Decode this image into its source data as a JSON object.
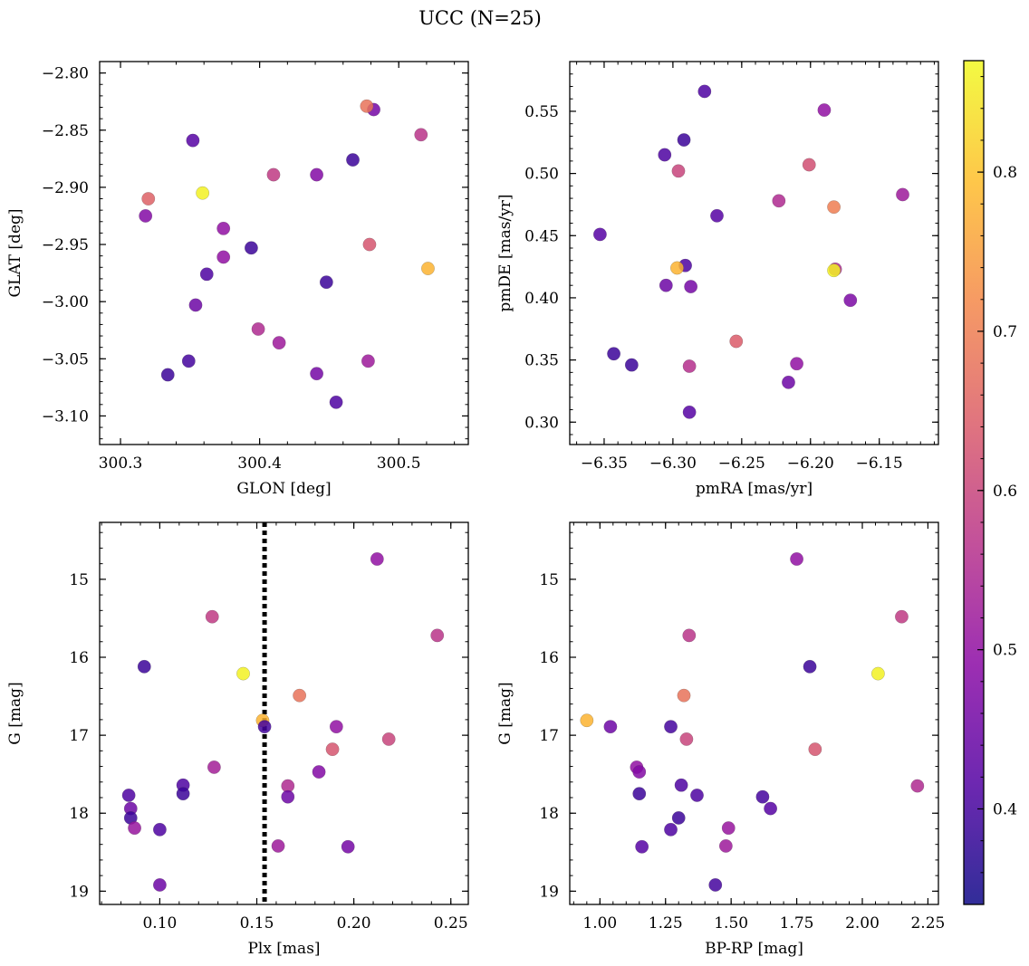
{
  "figure": {
    "title": "UCC (N=25)"
  },
  "colorbar": {
    "range": [
      0.34,
      0.87
    ],
    "ticks": [
      0.4,
      0.5,
      0.6,
      0.7,
      0.8
    ],
    "tick_labels": [
      "0.4",
      "0.5",
      "0.6",
      "0.7",
      "0.8"
    ],
    "colormap_stops": [
      "#0d0887",
      "#5302a3",
      "#8b0aa5",
      "#b83289",
      "#db5c68",
      "#f48849",
      "#febd2a",
      "#f0f921"
    ]
  },
  "chart_data": [
    {
      "type": "scatter",
      "xlabel": "GLON [deg]",
      "ylabel": "GLAT [deg]",
      "xlim": [
        300.285,
        300.55
      ],
      "ylim": [
        -3.125,
        -2.79
      ],
      "xticks": [
        300.3,
        300.4,
        300.5
      ],
      "xtick_labels": [
        "300.3",
        "300.4",
        "300.5"
      ],
      "yticks": [
        -2.8,
        -2.85,
        -2.9,
        -2.95,
        -3.0,
        -3.05,
        -3.1
      ],
      "ytick_labels": [
        "−2.80",
        "−2.85",
        "−2.90",
        "−2.95",
        "−3.00",
        "−3.05",
        "−3.10"
      ],
      "points": [
        {
          "x": 300.516,
          "y": -2.854,
          "c": 0.57
        },
        {
          "x": 300.482,
          "y": -2.832,
          "c": 0.46
        },
        {
          "x": 300.477,
          "y": -2.829,
          "c": 0.68
        },
        {
          "x": 300.467,
          "y": -2.876,
          "c": 0.39
        },
        {
          "x": 300.352,
          "y": -2.859,
          "c": 0.42
        },
        {
          "x": 300.41,
          "y": -2.889,
          "c": 0.58
        },
        {
          "x": 300.441,
          "y": -2.889,
          "c": 0.48
        },
        {
          "x": 300.32,
          "y": -2.91,
          "c": 0.65
        },
        {
          "x": 300.318,
          "y": -2.925,
          "c": 0.48
        },
        {
          "x": 300.359,
          "y": -2.905,
          "c": 0.86
        },
        {
          "x": 300.374,
          "y": -2.936,
          "c": 0.5
        },
        {
          "x": 300.374,
          "y": -2.961,
          "c": 0.5
        },
        {
          "x": 300.394,
          "y": -2.953,
          "c": 0.39
        },
        {
          "x": 300.479,
          "y": -2.95,
          "c": 0.63
        },
        {
          "x": 300.521,
          "y": -2.971,
          "c": 0.78
        },
        {
          "x": 300.362,
          "y": -2.976,
          "c": 0.41
        },
        {
          "x": 300.448,
          "y": -2.983,
          "c": 0.39
        },
        {
          "x": 300.354,
          "y": -3.003,
          "c": 0.45
        },
        {
          "x": 300.399,
          "y": -3.024,
          "c": 0.55
        },
        {
          "x": 300.414,
          "y": -3.036,
          "c": 0.52
        },
        {
          "x": 300.349,
          "y": -3.052,
          "c": 0.4
        },
        {
          "x": 300.478,
          "y": -3.052,
          "c": 0.52
        },
        {
          "x": 300.334,
          "y": -3.064,
          "c": 0.39
        },
        {
          "x": 300.441,
          "y": -3.063,
          "c": 0.46
        },
        {
          "x": 300.455,
          "y": -3.088,
          "c": 0.41
        }
      ]
    },
    {
      "type": "scatter",
      "xlabel": "pmRA [mas/yr]",
      "ylabel": "pmDE [mas/yr]",
      "xlim": [
        -6.375,
        -6.107
      ],
      "ylim": [
        0.282,
        0.59
      ],
      "xticks": [
        -6.35,
        -6.3,
        -6.25,
        -6.2,
        -6.15
      ],
      "xtick_labels": [
        "−6.35",
        "−6.30",
        "−6.25",
        "−6.20",
        "−6.15"
      ],
      "yticks": [
        0.3,
        0.35,
        0.4,
        0.45,
        0.5,
        0.55
      ],
      "ytick_labels": [
        "0.30",
        "0.35",
        "0.40",
        "0.45",
        "0.50",
        "0.55"
      ],
      "points": [
        {
          "x": -6.277,
          "y": 0.566,
          "c": 0.41
        },
        {
          "x": -6.19,
          "y": 0.551,
          "c": 0.5
        },
        {
          "x": -6.292,
          "y": 0.527,
          "c": 0.39
        },
        {
          "x": -6.306,
          "y": 0.515,
          "c": 0.41
        },
        {
          "x": -6.296,
          "y": 0.502,
          "c": 0.6
        },
        {
          "x": -6.201,
          "y": 0.507,
          "c": 0.62
        },
        {
          "x": -6.133,
          "y": 0.483,
          "c": 0.52
        },
        {
          "x": -6.223,
          "y": 0.478,
          "c": 0.55
        },
        {
          "x": -6.183,
          "y": 0.473,
          "c": 0.7
        },
        {
          "x": -6.268,
          "y": 0.466,
          "c": 0.42
        },
        {
          "x": -6.353,
          "y": 0.451,
          "c": 0.42
        },
        {
          "x": -6.291,
          "y": 0.426,
          "c": 0.41
        },
        {
          "x": -6.297,
          "y": 0.424,
          "c": 0.78
        },
        {
          "x": -6.182,
          "y": 0.423,
          "c": 0.55
        },
        {
          "x": -6.183,
          "y": 0.422,
          "c": 0.86
        },
        {
          "x": -6.305,
          "y": 0.41,
          "c": 0.45
        },
        {
          "x": -6.287,
          "y": 0.409,
          "c": 0.46
        },
        {
          "x": -6.171,
          "y": 0.398,
          "c": 0.47
        },
        {
          "x": -6.254,
          "y": 0.365,
          "c": 0.64
        },
        {
          "x": -6.343,
          "y": 0.355,
          "c": 0.39
        },
        {
          "x": -6.33,
          "y": 0.346,
          "c": 0.39
        },
        {
          "x": -6.288,
          "y": 0.345,
          "c": 0.56
        },
        {
          "x": -6.21,
          "y": 0.347,
          "c": 0.5
        },
        {
          "x": -6.216,
          "y": 0.332,
          "c": 0.45
        },
        {
          "x": -6.288,
          "y": 0.308,
          "c": 0.42
        }
      ]
    },
    {
      "type": "scatter",
      "xlabel": "Plx [mas]",
      "ylabel": "G [mag]",
      "xlim": [
        0.069,
        0.259
      ],
      "ylim": [
        19.17,
        14.27
      ],
      "y_inverted": true,
      "vline": {
        "x": 0.154,
        "style": "dotted"
      },
      "xticks": [
        0.1,
        0.15,
        0.2,
        0.25
      ],
      "xtick_labels": [
        "0.10",
        "0.15",
        "0.20",
        "0.25"
      ],
      "yticks": [
        15,
        16,
        17,
        18,
        19
      ],
      "ytick_labels": [
        "15",
        "16",
        "17",
        "18",
        "19"
      ],
      "points": [
        {
          "x": 0.212,
          "y": 14.74,
          "c": 0.5
        },
        {
          "x": 0.243,
          "y": 15.72,
          "c": 0.57
        },
        {
          "x": 0.127,
          "y": 15.48,
          "c": 0.58
        },
        {
          "x": 0.092,
          "y": 16.12,
          "c": 0.39
        },
        {
          "x": 0.143,
          "y": 16.21,
          "c": 0.86
        },
        {
          "x": 0.172,
          "y": 16.49,
          "c": 0.68
        },
        {
          "x": 0.153,
          "y": 16.81,
          "c": 0.78
        },
        {
          "x": 0.154,
          "y": 16.89,
          "c": 0.4
        },
        {
          "x": 0.191,
          "y": 16.89,
          "c": 0.5
        },
        {
          "x": 0.218,
          "y": 17.05,
          "c": 0.6
        },
        {
          "x": 0.189,
          "y": 17.18,
          "c": 0.63
        },
        {
          "x": 0.128,
          "y": 17.41,
          "c": 0.53
        },
        {
          "x": 0.182,
          "y": 17.47,
          "c": 0.48
        },
        {
          "x": 0.112,
          "y": 17.64,
          "c": 0.41
        },
        {
          "x": 0.166,
          "y": 17.65,
          "c": 0.55
        },
        {
          "x": 0.112,
          "y": 17.75,
          "c": 0.39
        },
        {
          "x": 0.084,
          "y": 17.77,
          "c": 0.41
        },
        {
          "x": 0.166,
          "y": 17.79,
          "c": 0.45
        },
        {
          "x": 0.085,
          "y": 17.94,
          "c": 0.45
        },
        {
          "x": 0.085,
          "y": 18.06,
          "c": 0.39
        },
        {
          "x": 0.087,
          "y": 18.19,
          "c": 0.51
        },
        {
          "x": 0.1,
          "y": 18.21,
          "c": 0.41
        },
        {
          "x": 0.161,
          "y": 18.42,
          "c": 0.52
        },
        {
          "x": 0.197,
          "y": 18.43,
          "c": 0.46
        },
        {
          "x": 0.1,
          "y": 18.92,
          "c": 0.45
        }
      ]
    },
    {
      "type": "scatter",
      "xlabel": "BP-RP [mag]",
      "ylabel": "G [mag]",
      "xlim": [
        0.885,
        2.29
      ],
      "ylim": [
        19.17,
        14.27
      ],
      "y_inverted": true,
      "xticks": [
        1.0,
        1.25,
        1.5,
        1.75,
        2.0,
        2.25
      ],
      "xtick_labels": [
        "1.00",
        "1.25",
        "1.50",
        "1.75",
        "2.00",
        "2.25"
      ],
      "yticks": [
        15,
        16,
        17,
        18,
        19
      ],
      "ytick_labels": [
        "15",
        "16",
        "17",
        "18",
        "19"
      ],
      "points": [
        {
          "x": 1.75,
          "y": 14.74,
          "c": 0.5
        },
        {
          "x": 2.15,
          "y": 15.48,
          "c": 0.58
        },
        {
          "x": 1.34,
          "y": 15.72,
          "c": 0.57
        },
        {
          "x": 1.8,
          "y": 16.12,
          "c": 0.39
        },
        {
          "x": 2.06,
          "y": 16.21,
          "c": 0.86
        },
        {
          "x": 1.32,
          "y": 16.49,
          "c": 0.68
        },
        {
          "x": 0.95,
          "y": 16.81,
          "c": 0.78
        },
        {
          "x": 1.04,
          "y": 16.89,
          "c": 0.45
        },
        {
          "x": 1.27,
          "y": 16.89,
          "c": 0.4
        },
        {
          "x": 1.33,
          "y": 17.05,
          "c": 0.6
        },
        {
          "x": 1.82,
          "y": 17.18,
          "c": 0.63
        },
        {
          "x": 1.14,
          "y": 17.41,
          "c": 0.5
        },
        {
          "x": 1.15,
          "y": 17.47,
          "c": 0.48
        },
        {
          "x": 1.31,
          "y": 17.64,
          "c": 0.41
        },
        {
          "x": 2.21,
          "y": 17.65,
          "c": 0.55
        },
        {
          "x": 1.15,
          "y": 17.75,
          "c": 0.39
        },
        {
          "x": 1.37,
          "y": 17.77,
          "c": 0.41
        },
        {
          "x": 1.62,
          "y": 17.79,
          "c": 0.4
        },
        {
          "x": 1.65,
          "y": 17.94,
          "c": 0.42
        },
        {
          "x": 1.3,
          "y": 18.06,
          "c": 0.39
        },
        {
          "x": 1.49,
          "y": 18.19,
          "c": 0.51
        },
        {
          "x": 1.27,
          "y": 18.21,
          "c": 0.41
        },
        {
          "x": 1.48,
          "y": 18.42,
          "c": 0.52
        },
        {
          "x": 1.16,
          "y": 18.43,
          "c": 0.42
        },
        {
          "x": 1.44,
          "y": 18.92,
          "c": 0.4
        }
      ]
    }
  ]
}
